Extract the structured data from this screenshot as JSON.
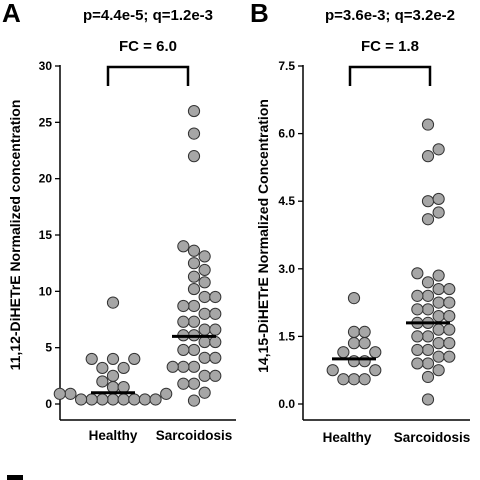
{
  "chart_data": [
    {
      "type": "scatter",
      "panel": "A",
      "annotation": {
        "stats": "p=4.4e-5; q=1.2e-3",
        "fc": "FC = 6.0"
      },
      "ylabel": "11,12-DiHETrE Normalized concentration",
      "categories": [
        "Healthy",
        "Sarcoidosis"
      ],
      "ylim": [
        0,
        30
      ],
      "yticks": [
        0,
        5,
        10,
        15,
        20,
        25,
        30
      ],
      "tick_labels": [
        "0",
        "5",
        "10",
        "15",
        "20",
        "25",
        "30"
      ],
      "medians": [
        1.0,
        6.0
      ],
      "points": [
        [
          0.4,
          0.4,
          0.4,
          0.4,
          0.4,
          0.4,
          0.4,
          0.4,
          0.9,
          0.9,
          0.9,
          1.5,
          1.5,
          2.0,
          2.5,
          3.2,
          3.2,
          4.0,
          4.0,
          4.0,
          9.0
        ],
        [
          0.3,
          1.0,
          1.8,
          1.8,
          2.5,
          2.5,
          3.3,
          3.3,
          3.3,
          4.1,
          4.1,
          4.8,
          4.8,
          5.5,
          5.5,
          6.1,
          6.1,
          6.6,
          6.6,
          7.3,
          7.3,
          8.0,
          8.0,
          8.7,
          8.7,
          9.5,
          9.5,
          10.2,
          10.8,
          11.3,
          11.9,
          12.5,
          13.1,
          13.6,
          14.0,
          22.0,
          24.0,
          26.0
        ]
      ]
    },
    {
      "type": "scatter",
      "panel": "B",
      "annotation": {
        "stats": "p=3.6e-3; q=3.2e-2",
        "fc": "FC = 1.8"
      },
      "ylabel": "14,15-DiHETrE Normalized Concentration",
      "categories": [
        "Healthy",
        "Sarcoidosis"
      ],
      "ylim": [
        0,
        7.5
      ],
      "yticks": [
        0,
        1.5,
        3.0,
        4.5,
        6.0,
        7.5
      ],
      "tick_labels": [
        "0.0",
        "1.5",
        "3.0",
        "4.5",
        "6.0",
        "7.5"
      ],
      "medians": [
        1.0,
        1.8
      ],
      "points": [
        [
          0.55,
          0.55,
          0.55,
          0.75,
          0.75,
          0.95,
          0.95,
          1.15,
          1.15,
          1.35,
          1.35,
          1.6,
          1.6,
          2.35
        ],
        [
          0.1,
          0.6,
          0.75,
          0.9,
          0.9,
          1.05,
          1.05,
          1.2,
          1.2,
          1.35,
          1.35,
          1.5,
          1.5,
          1.65,
          1.65,
          1.8,
          1.8,
          1.95,
          1.95,
          2.1,
          2.1,
          2.25,
          2.25,
          2.4,
          2.4,
          2.55,
          2.55,
          2.7,
          2.85,
          2.9,
          4.1,
          4.25,
          4.5,
          4.55,
          5.5,
          5.65,
          6.2
        ]
      ]
    }
  ],
  "colors": {
    "point_fill": "#a6a6a6",
    "point_stroke": "#333333",
    "axis": "#000000"
  },
  "partial_panel_letter": "C"
}
